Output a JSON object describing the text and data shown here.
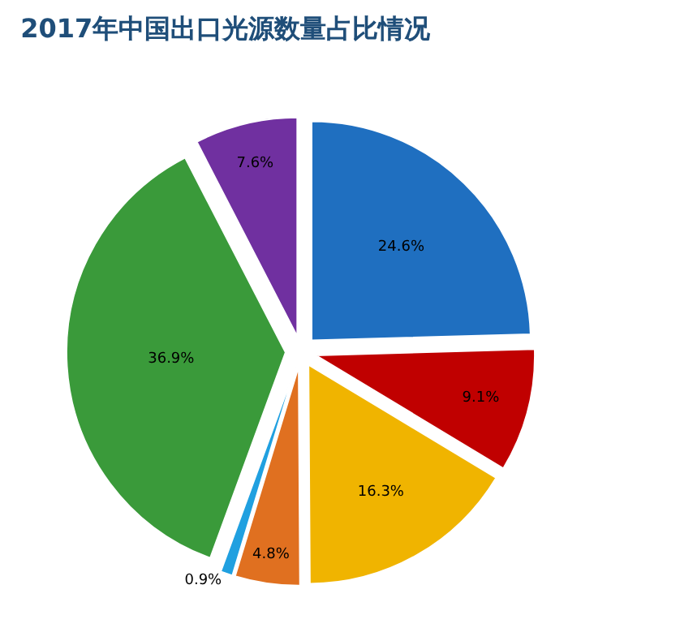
{
  "chart_data": {
    "type": "pie",
    "title": "2017年中国出口光源数量占比情况",
    "categories": [
      null,
      null,
      null,
      null,
      null,
      null,
      null
    ],
    "values": [
      24.6,
      9.1,
      16.3,
      4.8,
      0.9,
      36.9,
      7.6
    ],
    "value_labels": [
      "24.6%",
      "9.1%",
      "16.3%",
      "4.8%",
      "0.9%",
      "36.9%",
      "7.6%"
    ],
    "colors": [
      "#1f6fc0",
      "#c00000",
      "#f0b400",
      "#e07020",
      "#20a0e0",
      "#3a9a3a",
      "#7030a0"
    ],
    "legend": false
  }
}
